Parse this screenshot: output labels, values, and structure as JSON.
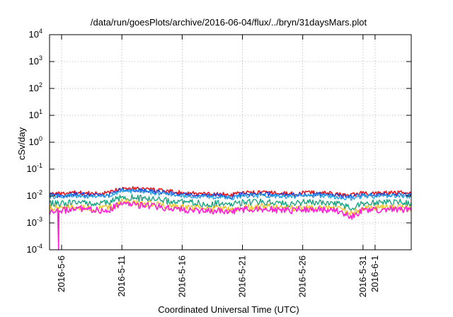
{
  "chart_data": {
    "type": "line",
    "title": "/data/run/goesPlots/archive/2016-06-04/flux/../bryn/31daysMars.plot",
    "xlabel": "Coordinated Universal Time (UTC)",
    "ylabel": "cSv/day",
    "y_scale": "log",
    "ylim": [
      0.0001,
      10000
    ],
    "xlim": [
      "2016-05-05",
      "2016-06-04"
    ],
    "grid": true,
    "y_ticks": [
      {
        "value": 0.0001,
        "base": "10",
        "exp": "-4"
      },
      {
        "value": 0.001,
        "base": "10",
        "exp": "-3"
      },
      {
        "value": 0.01,
        "base": "10",
        "exp": "-2"
      },
      {
        "value": 0.1,
        "base": "10",
        "exp": "-1"
      },
      {
        "value": 1,
        "base": "10",
        "exp": "0"
      },
      {
        "value": 10,
        "base": "10",
        "exp": "1"
      },
      {
        "value": 100,
        "base": "10",
        "exp": "2"
      },
      {
        "value": 1000,
        "base": "10",
        "exp": "3"
      },
      {
        "value": 10000,
        "base": "10",
        "exp": "4"
      }
    ],
    "x_ticks": [
      {
        "date": "2016-05-06",
        "label": "2016-5-6"
      },
      {
        "date": "2016-05-11",
        "label": "2016-5-11"
      },
      {
        "date": "2016-05-16",
        "label": "2016-5-16"
      },
      {
        "date": "2016-05-21",
        "label": "2016-5-21"
      },
      {
        "date": "2016-05-26",
        "label": "2016-5-26"
      },
      {
        "date": "2016-05-31",
        "label": "2016-5-31"
      },
      {
        "date": "2016-06-01",
        "label": "2016-6-1"
      }
    ],
    "x": [
      "2016-05-05",
      "2016-05-06",
      "2016-05-07",
      "2016-05-08",
      "2016-05-09",
      "2016-05-10",
      "2016-05-11",
      "2016-05-12",
      "2016-05-13",
      "2016-05-14",
      "2016-05-15",
      "2016-05-16",
      "2016-05-17",
      "2016-05-18",
      "2016-05-19",
      "2016-05-20",
      "2016-05-21",
      "2016-05-22",
      "2016-05-23",
      "2016-05-24",
      "2016-05-25",
      "2016-05-26",
      "2016-05-27",
      "2016-05-28",
      "2016-05-29",
      "2016-05-30",
      "2016-05-31",
      "2016-06-01",
      "2016-06-02",
      "2016-06-03",
      "2016-06-04"
    ],
    "series": [
      {
        "color": "#e8191c",
        "values": [
          0.0125,
          0.0115,
          0.0135,
          0.0125,
          0.012,
          0.013,
          0.021,
          0.019,
          0.018,
          0.016,
          0.0145,
          0.013,
          0.0125,
          0.0115,
          0.012,
          0.0105,
          0.013,
          0.013,
          0.0135,
          0.0125,
          0.012,
          0.013,
          0.0135,
          0.0125,
          0.0115,
          0.0105,
          0.0125,
          0.0125,
          0.013,
          0.013,
          0.0125
        ]
      },
      {
        "color": "#1f3fd8",
        "values": [
          0.011,
          0.0102,
          0.0118,
          0.011,
          0.0106,
          0.0115,
          0.018,
          0.0165,
          0.0156,
          0.014,
          0.0128,
          0.0115,
          0.011,
          0.0102,
          0.0106,
          0.0093,
          0.0115,
          0.0115,
          0.0118,
          0.011,
          0.0106,
          0.0115,
          0.0118,
          0.011,
          0.0102,
          0.0094,
          0.011,
          0.011,
          0.0115,
          0.0115,
          0.011
        ]
      },
      {
        "color": "#1fa0e8",
        "values": [
          0.0098,
          0.009,
          0.0105,
          0.0098,
          0.0094,
          0.0102,
          0.016,
          0.0148,
          0.014,
          0.0125,
          0.0114,
          0.0102,
          0.0098,
          0.009,
          0.0094,
          0.0083,
          0.0102,
          0.0102,
          0.0105,
          0.0098,
          0.0094,
          0.0102,
          0.0105,
          0.0098,
          0.009,
          0.0084,
          0.0098,
          0.0098,
          0.0102,
          0.0102,
          0.0098
        ]
      },
      {
        "color": "#10a07c",
        "values": [
          0.0055,
          0.005,
          0.006,
          0.0055,
          0.0052,
          0.0058,
          0.0092,
          0.0085,
          0.008,
          0.0071,
          0.0064,
          0.0058,
          0.0055,
          0.005,
          0.0052,
          0.0046,
          0.0058,
          0.0058,
          0.006,
          0.0055,
          0.0052,
          0.0058,
          0.006,
          0.0055,
          0.005,
          0.0035,
          0.0055,
          0.0055,
          0.0058,
          0.0058,
          0.0055
        ]
      },
      {
        "color": "#e8c21c",
        "values": [
          0.0036,
          0.0033,
          0.0039,
          0.0036,
          0.0034,
          0.0038,
          0.006,
          0.0055,
          0.0052,
          0.0046,
          0.0042,
          0.0038,
          0.0036,
          0.0033,
          0.0034,
          0.003,
          0.0038,
          0.0038,
          0.0039,
          0.0036,
          0.0034,
          0.0038,
          0.0039,
          0.0036,
          0.0033,
          0.0024,
          0.0036,
          0.0036,
          0.0038,
          0.0038,
          0.0036
        ]
      },
      {
        "color": "#ff22d4",
        "values": [
          0.0024,
          0.0028,
          0.0034,
          0.0031,
          0.0029,
          0.0032,
          0.0052,
          0.0047,
          0.0044,
          0.0039,
          0.0035,
          0.0032,
          0.003,
          0.0027,
          0.0029,
          0.0025,
          0.0032,
          0.0032,
          0.0033,
          0.003,
          0.0029,
          0.0032,
          0.0033,
          0.003,
          0.0028,
          0.0017,
          0.003,
          0.003,
          0.0032,
          0.0032,
          0.003
        ]
      }
    ]
  }
}
